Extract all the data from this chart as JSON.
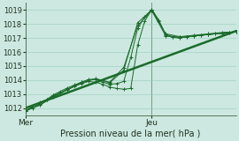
{
  "title": "Pression niveau de la mer( hPa )",
  "bg_color": "#cce8e0",
  "grid_color": "#99ccbb",
  "line_color": "#1a6b2a",
  "marker_color": "#1a6b2a",
  "ylim": [
    1011.5,
    1019.5
  ],
  "yticks": [
    1012,
    1013,
    1014,
    1015,
    1016,
    1017,
    1018,
    1019
  ],
  "xlim": [
    0,
    90
  ],
  "xlabel_mer_x": 0,
  "xlabel_jeu_x": 54,
  "vline_x": 54,
  "series": [
    [
      0,
      1011.8,
      3,
      1012.1,
      6,
      1012.4,
      9,
      1012.6,
      12,
      1012.9,
      15,
      1013.1,
      18,
      1013.35,
      21,
      1013.55,
      24,
      1013.75,
      27,
      1013.9,
      30,
      1013.85,
      33,
      1013.7,
      36,
      1013.5,
      39,
      1013.4,
      42,
      1013.35,
      45,
      1013.4,
      48,
      1016.5,
      51,
      1018.2,
      54,
      1019.05,
      57,
      1018.3,
      60,
      1017.2,
      63,
      1017.05,
      66,
      1017.0,
      69,
      1017.1,
      72,
      1017.15,
      75,
      1017.2,
      78,
      1017.25,
      81,
      1017.3,
      84,
      1017.35,
      87,
      1017.4,
      90,
      1017.45
    ],
    [
      0,
      1011.8,
      3,
      1012.0,
      6,
      1012.3,
      9,
      1012.6,
      12,
      1012.95,
      15,
      1013.2,
      18,
      1013.45,
      21,
      1013.65,
      24,
      1013.85,
      27,
      1014.05,
      30,
      1014.05,
      33,
      1013.85,
      36,
      1013.7,
      39,
      1013.75,
      42,
      1013.9,
      45,
      1015.6,
      48,
      1017.7,
      51,
      1018.5,
      54,
      1019.05,
      57,
      1018.2,
      60,
      1017.25,
      63,
      1017.1,
      66,
      1017.05,
      69,
      1017.1,
      72,
      1017.15,
      75,
      1017.2,
      78,
      1017.25,
      81,
      1017.3,
      84,
      1017.35,
      87,
      1017.4,
      90,
      1017.45
    ],
    [
      0,
      1011.8,
      6,
      1012.2,
      12,
      1012.8,
      18,
      1013.3,
      24,
      1013.8,
      30,
      1014.1,
      36,
      1013.8,
      42,
      1014.7,
      48,
      1018.1,
      54,
      1019.0,
      60,
      1017.3,
      66,
      1017.1,
      72,
      1017.2,
      78,
      1017.3,
      84,
      1017.4,
      90,
      1017.45
    ],
    [
      0,
      1011.85,
      6,
      1012.2,
      12,
      1012.85,
      18,
      1013.35,
      24,
      1013.85,
      30,
      1014.1,
      36,
      1013.85,
      42,
      1014.9,
      48,
      1017.9,
      54,
      1018.95,
      60,
      1017.15,
      66,
      1017.05,
      72,
      1017.15,
      78,
      1017.25,
      84,
      1017.35,
      90,
      1017.45
    ],
    [
      0,
      1012.0,
      90,
      1017.5
    ]
  ]
}
